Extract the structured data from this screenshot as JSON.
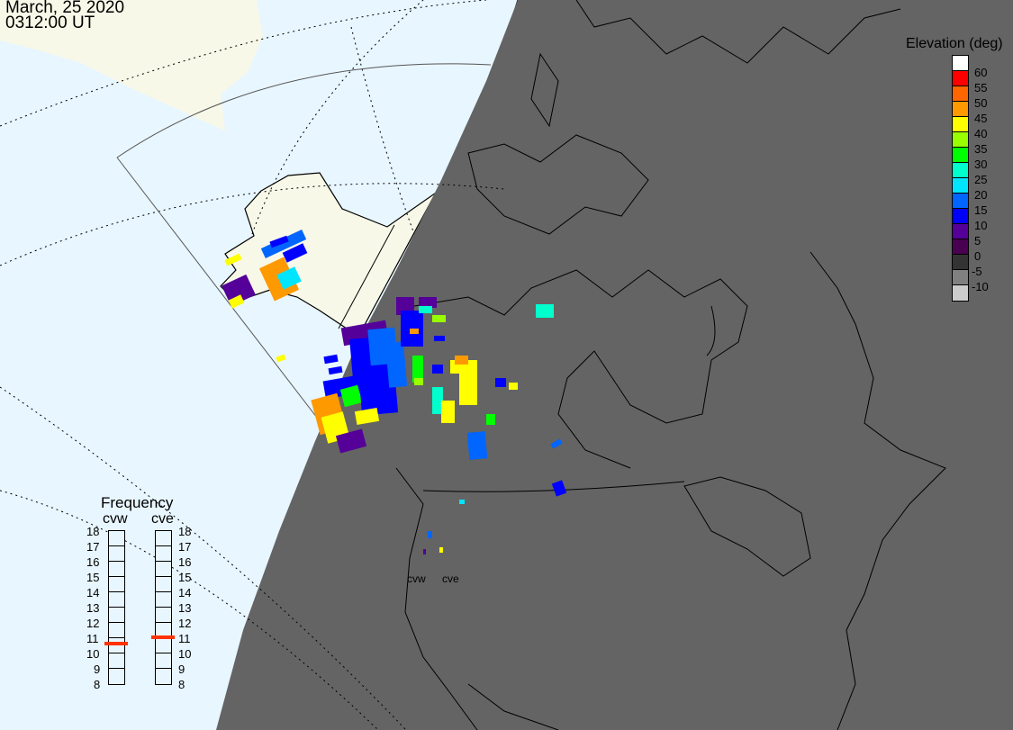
{
  "header": {
    "date": "March, 25 2020",
    "time": "0312:00 UT"
  },
  "colors": {
    "ocean": "#e8f6ff",
    "land": "#f8f8e8",
    "night": "#646464"
  },
  "legend": {
    "title": "Elevation (deg)",
    "swatches": [
      "#ffffff",
      "#ff0000",
      "#ff6600",
      "#ff9900",
      "#ffff00",
      "#99ff00",
      "#00ff00",
      "#00ffcc",
      "#00e5ff",
      "#0066ff",
      "#0000ff",
      "#550099",
      "#4a0050",
      "#333333",
      "#808080",
      "#cccccc"
    ],
    "ticks": [
      "60",
      "55",
      "50",
      "45",
      "40",
      "35",
      "30",
      "25",
      "20",
      "15",
      "10",
      "5",
      "0",
      "-5",
      "-10"
    ]
  },
  "frequency": {
    "title": "Frequency",
    "labels": [
      "18",
      "17",
      "16",
      "15",
      "14",
      "13",
      "12",
      "11",
      "10",
      "9",
      "8"
    ],
    "radars": [
      {
        "name": "cvw",
        "value_mhz": 10.6
      },
      {
        "name": "cve",
        "value_mhz": 11.0
      }
    ]
  },
  "sites": [
    "cvw",
    "cve"
  ]
}
